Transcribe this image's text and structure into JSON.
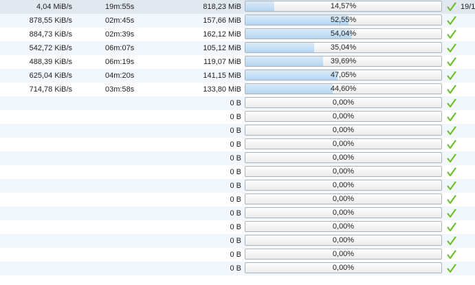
{
  "colors": {
    "progress_fill": "#b3d6f1",
    "check_green": "#6cbf2a",
    "row_alt": "#f1f7fc",
    "row_selected": "#e2e8ef"
  },
  "rows": [
    {
      "speed": "4,04 MiB/s",
      "eta": "19m:55s",
      "size": "818,23 MiB",
      "percent": "14,57%",
      "progress": 0.1457,
      "status_icon": "check-icon",
      "extra": "19/1"
    },
    {
      "speed": "878,55 KiB/s",
      "eta": "02m:45s",
      "size": "157,66 MiB",
      "percent": "52,55%",
      "progress": 0.5255,
      "status_icon": "check-icon"
    },
    {
      "speed": "884,73 KiB/s",
      "eta": "02m:39s",
      "size": "162,12 MiB",
      "percent": "54,04%",
      "progress": 0.5404,
      "status_icon": "check-icon"
    },
    {
      "speed": "542,72 KiB/s",
      "eta": "06m:07s",
      "size": "105,12 MiB",
      "percent": "35,04%",
      "progress": 0.3504,
      "status_icon": "check-icon"
    },
    {
      "speed": "488,39 KiB/s",
      "eta": "06m:19s",
      "size": "119,07 MiB",
      "percent": "39,69%",
      "progress": 0.3969,
      "status_icon": "check-icon"
    },
    {
      "speed": "625,04 KiB/s",
      "eta": "04m:20s",
      "size": "141,15 MiB",
      "percent": "47,05%",
      "progress": 0.4705,
      "status_icon": "check-icon"
    },
    {
      "speed": "714,78 KiB/s",
      "eta": "03m:58s",
      "size": "133,80 MiB",
      "percent": "44,60%",
      "progress": 0.446,
      "status_icon": "check-icon"
    },
    {
      "speed": "",
      "eta": "",
      "size": "0 B",
      "percent": "0,00%",
      "progress": 0,
      "status_icon": "check-icon"
    },
    {
      "speed": "",
      "eta": "",
      "size": "0 B",
      "percent": "0,00%",
      "progress": 0,
      "status_icon": "check-icon"
    },
    {
      "speed": "",
      "eta": "",
      "size": "0 B",
      "percent": "0,00%",
      "progress": 0,
      "status_icon": "check-icon"
    },
    {
      "speed": "",
      "eta": "",
      "size": "0 B",
      "percent": "0,00%",
      "progress": 0,
      "status_icon": "check-icon"
    },
    {
      "speed": "",
      "eta": "",
      "size": "0 B",
      "percent": "0,00%",
      "progress": 0,
      "status_icon": "check-icon"
    },
    {
      "speed": "",
      "eta": "",
      "size": "0 B",
      "percent": "0,00%",
      "progress": 0,
      "status_icon": "check-icon"
    },
    {
      "speed": "",
      "eta": "",
      "size": "0 B",
      "percent": "0,00%",
      "progress": 0,
      "status_icon": "check-icon"
    },
    {
      "speed": "",
      "eta": "",
      "size": "0 B",
      "percent": "0,00%",
      "progress": 0,
      "status_icon": "check-icon"
    },
    {
      "speed": "",
      "eta": "",
      "size": "0 B",
      "percent": "0,00%",
      "progress": 0,
      "status_icon": "check-icon"
    },
    {
      "speed": "",
      "eta": "",
      "size": "0 B",
      "percent": "0,00%",
      "progress": 0,
      "status_icon": "check-icon"
    },
    {
      "speed": "",
      "eta": "",
      "size": "0 B",
      "percent": "0,00%",
      "progress": 0,
      "status_icon": "check-icon"
    },
    {
      "speed": "",
      "eta": "",
      "size": "0 B",
      "percent": "0,00%",
      "progress": 0,
      "status_icon": "check-icon"
    },
    {
      "speed": "",
      "eta": "",
      "size": "0 B",
      "percent": "0,00%",
      "progress": 0,
      "status_icon": "check-icon"
    }
  ]
}
